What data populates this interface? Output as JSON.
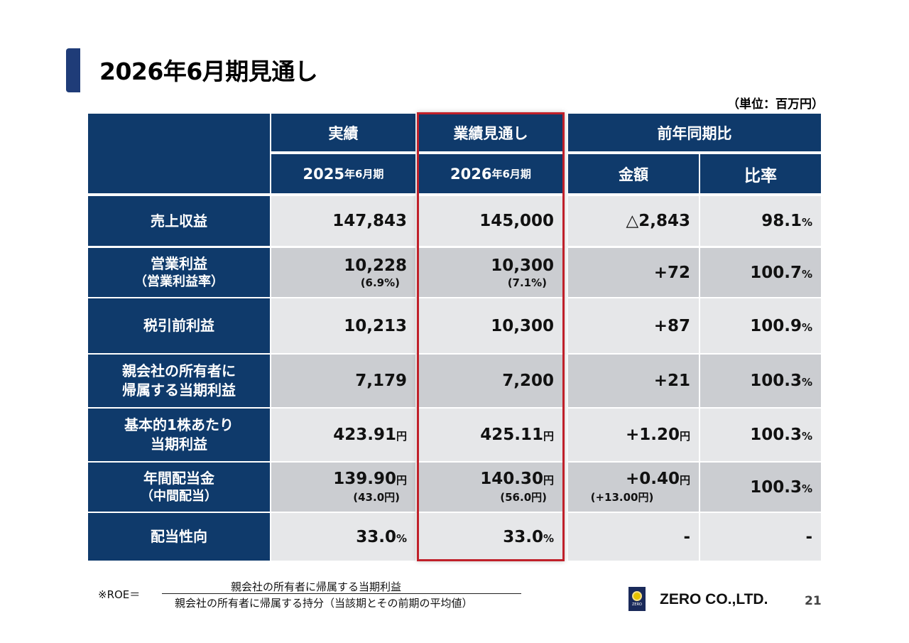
{
  "page": {
    "title": "2026年6月期見通し",
    "unit": "（単位：百万円）",
    "page_number": "21"
  },
  "header": {
    "actual": "実績",
    "forecast": "業績見通し",
    "yoy": "前年同期比",
    "actual_period": {
      "year": "2025",
      "suffix": "年6月期"
    },
    "forecast_period": {
      "year": "2026",
      "suffix": "年6月期"
    },
    "amount": "金額",
    "ratio": "比率"
  },
  "rows": [
    {
      "label1": "売上収益",
      "label2": "",
      "actual": "147,843",
      "actual_unit": "",
      "actual_sub": "",
      "forecast": "145,000",
      "forecast_unit": "",
      "forecast_sub": "",
      "amount": "△2,843",
      "amount_unit": "",
      "amount_sub": "",
      "ratio": "98.1",
      "ratio_unit": "%"
    },
    {
      "label1": "営業利益",
      "label2": "（営業利益率）",
      "actual": "10,228",
      "actual_unit": "",
      "actual_sub": "(6.9%)",
      "forecast": "10,300",
      "forecast_unit": "",
      "forecast_sub": "(7.1%)",
      "amount": "+72",
      "amount_unit": "",
      "amount_sub": "",
      "ratio": "100.7",
      "ratio_unit": "%"
    },
    {
      "label1": "税引前利益",
      "label2": "",
      "actual": "10,213",
      "actual_unit": "",
      "actual_sub": "",
      "forecast": "10,300",
      "forecast_unit": "",
      "forecast_sub": "",
      "amount": "+87",
      "amount_unit": "",
      "amount_sub": "",
      "ratio": "100.9",
      "ratio_unit": "%"
    },
    {
      "label1": "親会社の所有者に",
      "label2": "帰属する当期利益",
      "actual": "7,179",
      "actual_unit": "",
      "actual_sub": "",
      "forecast": "7,200",
      "forecast_unit": "",
      "forecast_sub": "",
      "amount": "+21",
      "amount_unit": "",
      "amount_sub": "",
      "ratio": "100.3",
      "ratio_unit": "%"
    },
    {
      "label1": "基本的1株あたり",
      "label2": "当期利益",
      "actual": "423.91",
      "actual_unit": "円",
      "actual_sub": "",
      "forecast": "425.11",
      "forecast_unit": "円",
      "forecast_sub": "",
      "amount": "+1.20",
      "amount_unit": "円",
      "amount_sub": "",
      "ratio": "100.3",
      "ratio_unit": "%"
    },
    {
      "label1": "年間配当金",
      "label2": "（中間配当）",
      "actual": "139.90",
      "actual_unit": "円",
      "actual_sub": "(43.0円)",
      "forecast": "140.30",
      "forecast_unit": "円",
      "forecast_sub": "(56.0円)",
      "amount": "+0.40",
      "amount_unit": "円",
      "amount_sub": "(+13.00円)",
      "ratio": "100.3",
      "ratio_unit": "%"
    },
    {
      "label1": "配当性向",
      "label2": "",
      "actual": "33.0",
      "actual_unit": "%",
      "actual_sub": "",
      "forecast": "33.0",
      "forecast_unit": "%",
      "forecast_sub": "",
      "amount": "-",
      "amount_unit": "",
      "amount_sub": "",
      "ratio": "-",
      "ratio_unit": ""
    }
  ],
  "footer": {
    "roe_label": "※ROE＝",
    "numerator": "親会社の所有者に帰属する当期利益",
    "denominator": "親会社の所有者に帰属する持分（当該期とその前期の平均値）",
    "company": "ZERO CO.,LTD.",
    "logo_text": "ZERO"
  },
  "colors": {
    "header_navy": "#0f3a6b",
    "title_accent": "#1f3c78",
    "highlight_red": "#c0202a",
    "row_light": "#e6e7e9",
    "row_dark": "#cbcdd1"
  }
}
